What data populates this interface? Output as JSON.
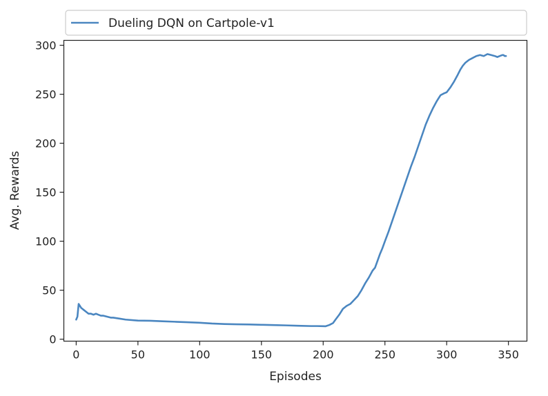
{
  "chart_data": {
    "type": "line",
    "xlabel": "Episodes",
    "ylabel": "Avg. Rewards",
    "xlim": [
      -10,
      365
    ],
    "ylim": [
      -2,
      305
    ],
    "xticks": [
      0,
      50,
      100,
      150,
      200,
      250,
      300,
      350
    ],
    "yticks": [
      0,
      50,
      100,
      150,
      200,
      250,
      300
    ],
    "grid": false,
    "legend_position": "top",
    "colors": {
      "line": "#4a86c0",
      "axis": "#222222",
      "legend_border": "#cccccc"
    },
    "series": [
      {
        "name": "Dueling DQN on Cartpole-v1",
        "x": [
          0,
          1,
          2,
          3,
          4,
          5,
          6,
          8,
          10,
          12,
          14,
          16,
          18,
          20,
          22,
          25,
          28,
          30,
          35,
          40,
          50,
          60,
          70,
          80,
          90,
          100,
          110,
          120,
          130,
          140,
          150,
          160,
          170,
          180,
          190,
          195,
          200,
          202,
          205,
          208,
          210,
          213,
          216,
          219,
          222,
          225,
          228,
          231,
          234,
          237,
          240,
          242,
          244,
          246,
          248,
          250,
          253,
          256,
          259,
          262,
          265,
          268,
          271,
          274,
          277,
          280,
          283,
          286,
          289,
          292,
          295,
          298,
          300,
          303,
          306,
          309,
          311,
          313,
          315,
          318,
          321,
          324,
          327,
          330,
          333,
          336,
          339,
          341,
          343,
          345,
          346,
          347,
          348
        ],
        "values": [
          20,
          23,
          36,
          34,
          32,
          31,
          30,
          28,
          26,
          26,
          25,
          26,
          25,
          24,
          24,
          23,
          22,
          22,
          21,
          20,
          19,
          18.8,
          18.3,
          17.8,
          17.3,
          16.8,
          16,
          15.5,
          15.2,
          15,
          14.7,
          14.4,
          14.1,
          13.7,
          13.4,
          13.4,
          13.3,
          13.2,
          14.5,
          16.5,
          20,
          25,
          31,
          34,
          36,
          40,
          44,
          50,
          57,
          63,
          70,
          73,
          80,
          87,
          93,
          100,
          110,
          121,
          132,
          143,
          154,
          165,
          176,
          186,
          197,
          208,
          219,
          228,
          236,
          243,
          249,
          251,
          252,
          257,
          263,
          270,
          275,
          279,
          282,
          285,
          287,
          289,
          290,
          289,
          291,
          290,
          289,
          288,
          289,
          290,
          290,
          289,
          289
        ]
      }
    ]
  }
}
